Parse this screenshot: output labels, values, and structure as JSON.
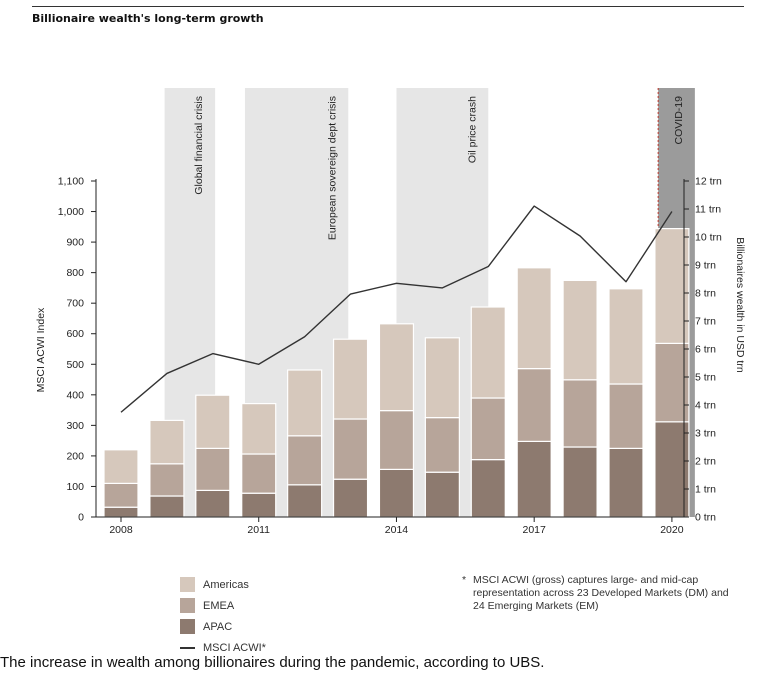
{
  "title": "Billionaire wealth's long-term growth",
  "caption": "The increase in wealth among billionaires during the pandemic, according to UBS.",
  "footnote": {
    "marker": "*",
    "text": "MSCI ACWI (gross) captures large- and mid-cap representation across 23 Developed Markets (DM) and 24 Emerging Markets (EM)"
  },
  "legend": [
    {
      "label": "Americas",
      "color": "#d6c8bc",
      "kind": "box"
    },
    {
      "label": "EMEA",
      "color": "#b7a59a",
      "kind": "box"
    },
    {
      "label": "APAC",
      "color": "#8d7a6f",
      "kind": "box"
    },
    {
      "label": "MSCI ACWI*",
      "color": "#333333",
      "kind": "line"
    }
  ],
  "chart_data": {
    "type": "bar",
    "stacked": true,
    "title": "Billionaire wealth's long-term growth",
    "x": [
      2008,
      2009,
      2010,
      2011,
      2012,
      2013,
      2014,
      2015,
      2016,
      2017,
      2018,
      2019,
      2020
    ],
    "x_tick_labels": [
      "2008",
      "2011",
      "2014",
      "2017",
      "2020"
    ],
    "x_tick_values": [
      2008,
      2011,
      2014,
      2017,
      2020
    ],
    "ylabel_left": "MSCI ACWI Index",
    "ylim_left": [
      0,
      1100
    ],
    "yticks_left": [
      0,
      100,
      200,
      300,
      400,
      500,
      600,
      700,
      800,
      900,
      "1,000",
      "1,100"
    ],
    "ylabel_right": "Billionaires wealth in USD trn",
    "ylim_right": [
      0,
      12
    ],
    "yticks_right": [
      "0 trn",
      "1 trn",
      "2 trn",
      "3 trn",
      "4 trn",
      "5 trn",
      "6 trn",
      "7 trn",
      "8 trn",
      "9 trn",
      "10 trn",
      "11 trn",
      "12 trn"
    ],
    "series": [
      {
        "name": "APAC",
        "axis": "right",
        "color": "#8d7a6f",
        "values": [
          0.35,
          0.75,
          0.95,
          0.85,
          1.15,
          1.35,
          1.7,
          1.6,
          2.05,
          2.7,
          2.5,
          2.45,
          3.4
        ]
      },
      {
        "name": "EMEA",
        "axis": "right",
        "color": "#b7a59a",
        "values": [
          0.85,
          1.15,
          1.5,
          1.4,
          1.75,
          2.15,
          2.1,
          1.95,
          2.2,
          2.6,
          2.4,
          2.3,
          2.8
        ]
      },
      {
        "name": "Americas",
        "axis": "right",
        "color": "#d6c8bc",
        "values": [
          1.2,
          1.55,
          1.9,
          1.8,
          2.35,
          2.85,
          3.1,
          2.85,
          3.25,
          3.6,
          3.55,
          3.4,
          4.1
        ]
      },
      {
        "name": "MSCI ACWI*",
        "axis": "left",
        "type": "line",
        "color": "#333333",
        "values": [
          343,
          470,
          535,
          500,
          590,
          730,
          765,
          750,
          820,
          1018,
          920,
          770,
          1000
        ]
      }
    ],
    "annotations": [
      {
        "label": "Global financial crisis",
        "x_range": [
          2008.95,
          2010.05
        ],
        "color": "#e6e6e6"
      },
      {
        "label": "European sovereign dept crisis",
        "x_range": [
          2010.7,
          2012.95
        ],
        "color": "#e6e6e6"
      },
      {
        "label": "Oil price crash",
        "x_range": [
          2014.0,
          2016.0
        ],
        "color": "#e6e6e6"
      },
      {
        "label": "COVID-19",
        "x_range": [
          2019.7,
          2020.5
        ],
        "color": "#9b9b9b"
      }
    ],
    "grid": false
  }
}
